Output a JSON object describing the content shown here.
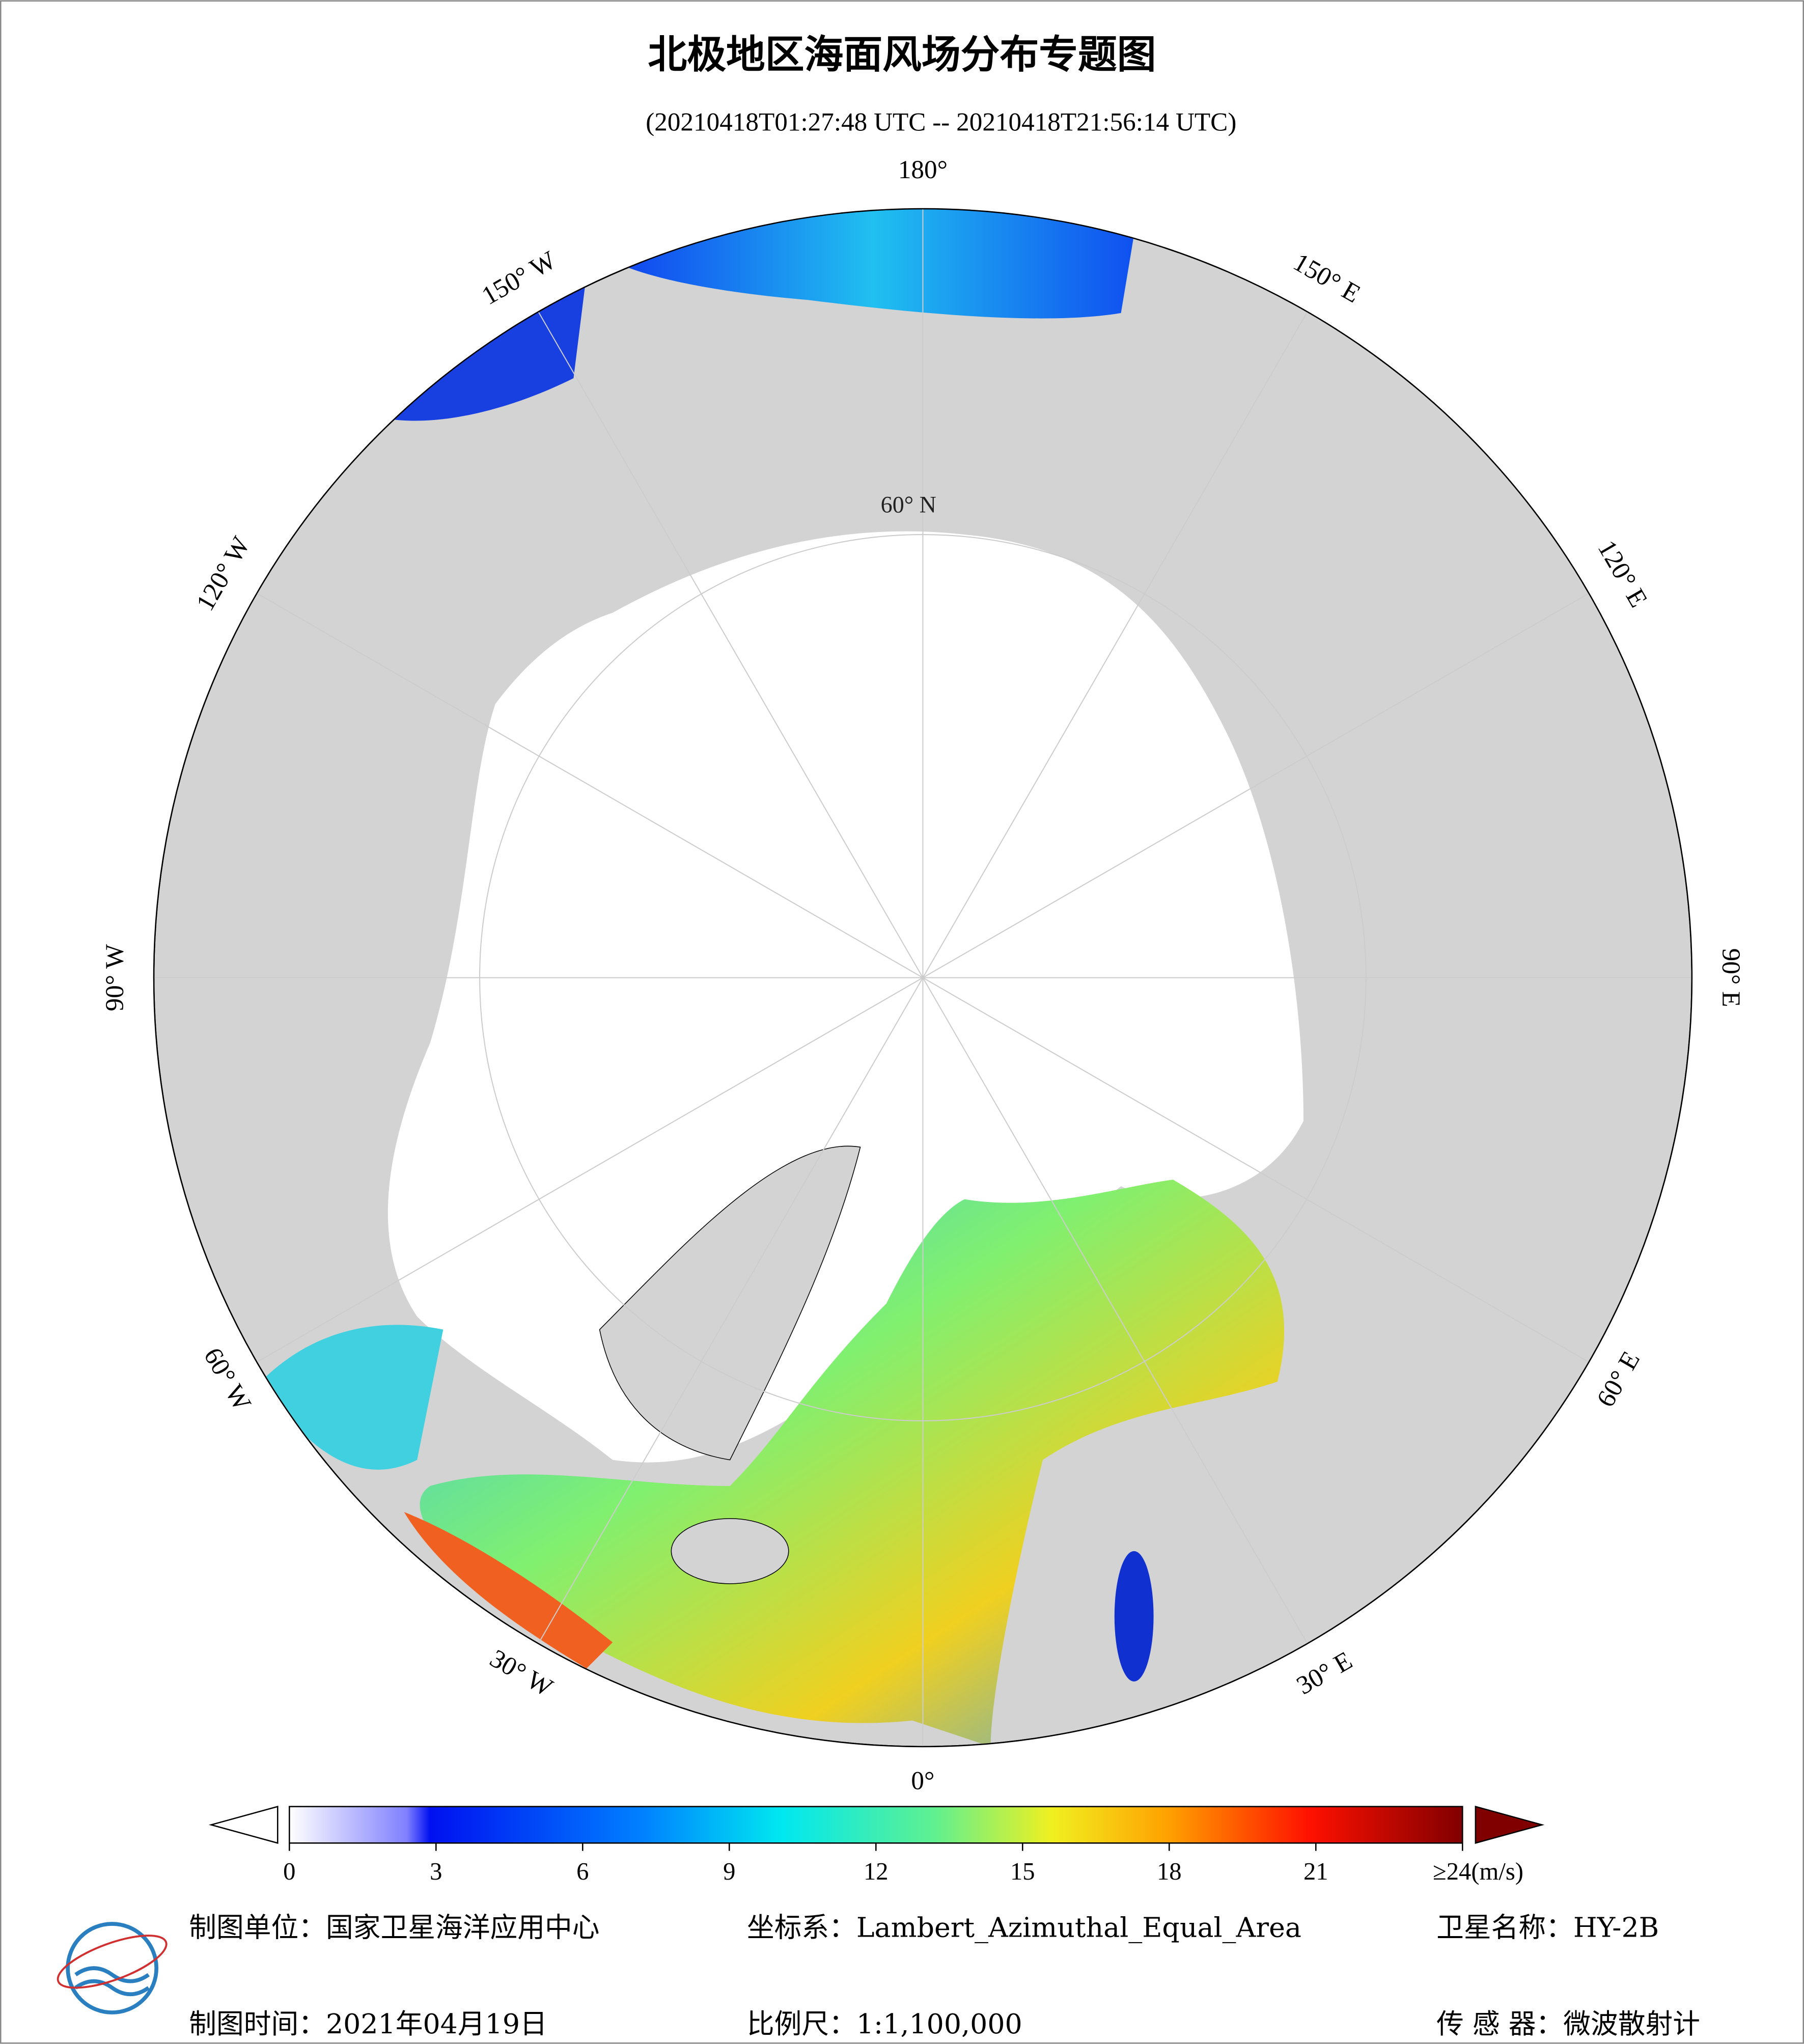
{
  "header": {
    "title": "北极地区海面风场分布专题图",
    "subtitle": "(20210418T01:27:48 UTC -- 20210418T21:56:14 UTC)"
  },
  "map": {
    "graticule_labels": [
      "180°",
      "150° E",
      "120° E",
      "90° E",
      "60° E",
      "30° E",
      "0°",
      "30° W",
      "60° W",
      "90° W",
      "120° W",
      "150° W"
    ],
    "latitude_label": "60° N"
  },
  "colorbar": {
    "range": [
      0,
      24
    ],
    "ticks": [
      0,
      3,
      6,
      9,
      12,
      15,
      18,
      21,
      {
        "value": 24,
        "label": "≥24(m/s)"
      }
    ]
  },
  "footer": {
    "producer": "制图单位：国家卫星海洋应用中心",
    "projection": "坐标系：Lambert_Azimuthal_Equal_Area",
    "satellite": "卫星名称：HY-2B",
    "date": "制图时间：2021年04月19日",
    "scale": "比例尺：1:1,100,000",
    "sensor": "传 感 器：微波散射计"
  }
}
